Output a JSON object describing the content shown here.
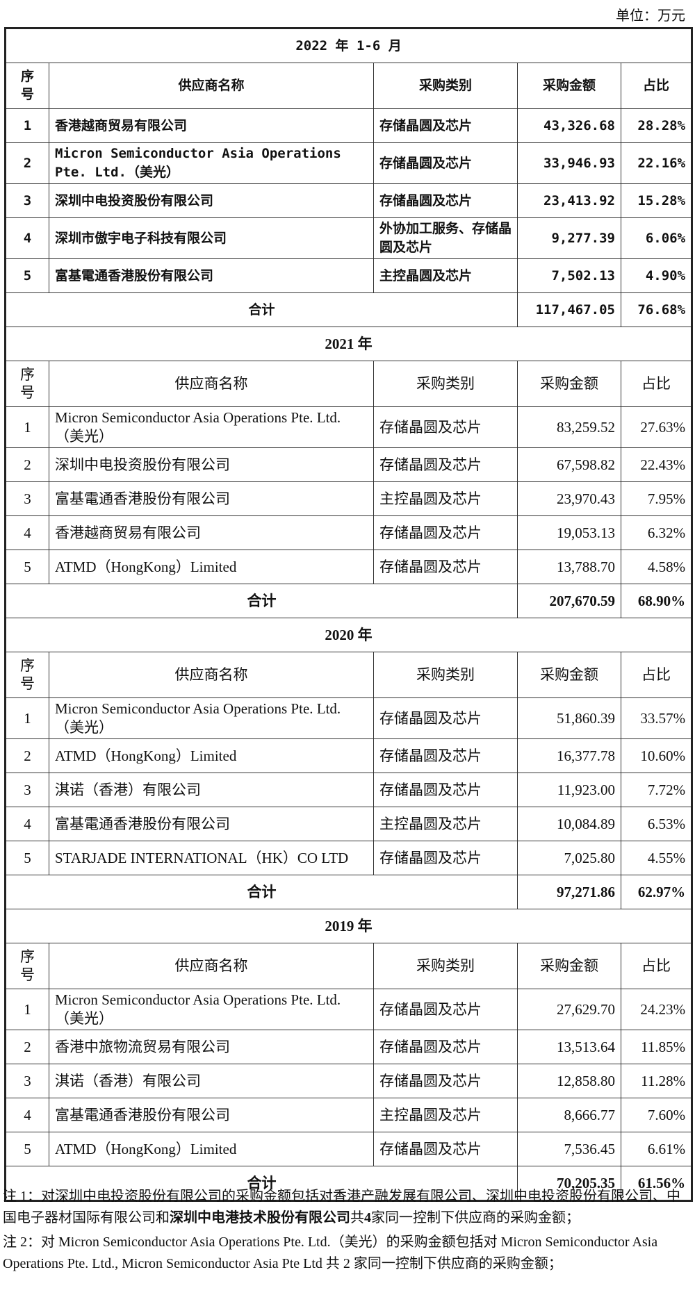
{
  "unit": "单位：万元",
  "sections": [
    {
      "title": "2022 年 1-6 月",
      "header": [
        "序号",
        "供应商名称",
        "采购类别",
        "采购金额",
        "占比"
      ],
      "rows": [
        [
          "1",
          "香港越商贸易有限公司",
          "存储晶圆及芯片",
          "43,326.68",
          "28.28%"
        ],
        [
          "2",
          "Micron Semiconductor Asia Operations Pte. Ltd.（美光）",
          "存储晶圆及芯片",
          "33,946.93",
          "22.16%"
        ],
        [
          "3",
          "深圳中电投资股份有限公司",
          "存储晶圆及芯片",
          "23,413.92",
          "15.28%"
        ],
        [
          "4",
          "深圳市傲宇电子科技有限公司",
          "外协加工服务、存储晶圆及芯片",
          "9,277.39",
          "6.06%"
        ],
        [
          "5",
          "富基電通香港股份有限公司",
          "主控晶圆及芯片",
          "7,502.13",
          "4.90%"
        ]
      ],
      "total": [
        "合计",
        "117,467.05",
        "76.68%"
      ]
    },
    {
      "title": "2021 年",
      "header": [
        "序号",
        "供应商名称",
        "采购类别",
        "采购金额",
        "占比"
      ],
      "rows": [
        [
          "1",
          "Micron Semiconductor Asia Operations Pte. Ltd.（美光）",
          "存储晶圆及芯片",
          "83,259.52",
          "27.63%"
        ],
        [
          "2",
          "深圳中电投资股份有限公司",
          "存储晶圆及芯片",
          "67,598.82",
          "22.43%"
        ],
        [
          "3",
          "富基電通香港股份有限公司",
          "主控晶圆及芯片",
          "23,970.43",
          "7.95%"
        ],
        [
          "4",
          "香港越商贸易有限公司",
          "存储晶圆及芯片",
          "19,053.13",
          "6.32%"
        ],
        [
          "5",
          "ATMD（HongKong）Limited",
          "存储晶圆及芯片",
          "13,788.70",
          "4.58%"
        ]
      ],
      "total": [
        "合计",
        "207,670.59",
        "68.90%"
      ]
    },
    {
      "title": "2020 年",
      "header": [
        "序号",
        "供应商名称",
        "采购类别",
        "采购金额",
        "占比"
      ],
      "rows": [
        [
          "1",
          "Micron Semiconductor Asia Operations Pte. Ltd.（美光）",
          "存储晶圆及芯片",
          "51,860.39",
          "33.57%"
        ],
        [
          "2",
          "ATMD（HongKong）Limited",
          "存储晶圆及芯片",
          "16,377.78",
          "10.60%"
        ],
        [
          "3",
          "淇诺（香港）有限公司",
          "存储晶圆及芯片",
          "11,923.00",
          "7.72%"
        ],
        [
          "4",
          "富基電通香港股份有限公司",
          "主控晶圆及芯片",
          "10,084.89",
          "6.53%"
        ],
        [
          "5",
          "STARJADE INTERNATIONAL（HK）CO LTD",
          "存储晶圆及芯片",
          "7,025.80",
          "4.55%"
        ]
      ],
      "total": [
        "合计",
        "97,271.86",
        "62.97%"
      ]
    },
    {
      "title": "2019 年",
      "header": [
        "序号",
        "供应商名称",
        "采购类别",
        "采购金额",
        "占比"
      ],
      "rows": [
        [
          "1",
          "Micron Semiconductor Asia Operations Pte. Ltd.（美光）",
          "存储晶圆及芯片",
          "27,629.70",
          "24.23%"
        ],
        [
          "2",
          "香港中旅物流贸易有限公司",
          "存储晶圆及芯片",
          "13,513.64",
          "11.85%"
        ],
        [
          "3",
          "淇诺（香港）有限公司",
          "存储晶圆及芯片",
          "12,858.80",
          "11.28%"
        ],
        [
          "4",
          "富基電通香港股份有限公司",
          "主控晶圆及芯片",
          "8,666.77",
          "7.60%"
        ],
        [
          "5",
          "ATMD（HongKong）Limited",
          "存储晶圆及芯片",
          "7,536.45",
          "6.61%"
        ]
      ],
      "total": [
        "合计",
        "70,205.35",
        "61.56%"
      ]
    }
  ],
  "notes": [
    [
      "注 1：对深圳中电投资股份有限公司的采购金额包括对香港产融发展有限公司、深圳中电投资股份有限公司、中国电子器材国际有限公司和",
      "深圳中电港技术股份有限公司",
      "共",
      "4",
      "家同一控制下供应商的采购金额；"
    ],
    [
      "注 2：对 Micron Semiconductor Asia Operations Pte. Ltd.（美光）的采购金额包括对 Micron Semiconductor Asia Operations Pte. Ltd., Micron Semiconductor Asia Pte Ltd 共 2 家同一控制下供应商的采购金额；"
    ]
  ]
}
